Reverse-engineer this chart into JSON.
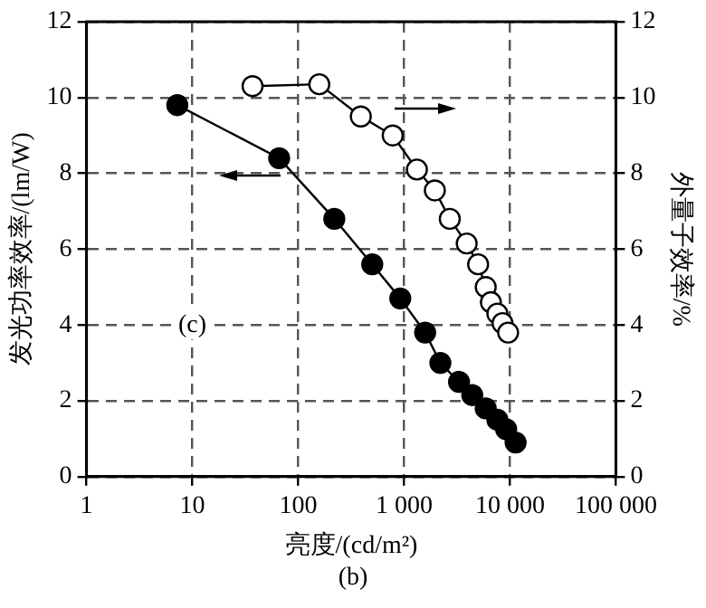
{
  "chart_data": {
    "type": "line",
    "xlabel": "亮度/(cd/m²)",
    "ylabel": "发光功率效率/(lm/W)",
    "y2label": "外量子效率/%",
    "log": "x",
    "xlim": [
      1,
      100000
    ],
    "xticks": [
      {
        "value": 1,
        "label": "1"
      },
      {
        "value": 10,
        "label": "10"
      },
      {
        "value": 100,
        "label": "100"
      },
      {
        "value": 1000,
        "label": "1 000"
      },
      {
        "value": 10000,
        "label": "10 000"
      },
      {
        "value": 100000,
        "label": "100 000"
      }
    ],
    "ylim": [
      0,
      12
    ],
    "yticks": [
      0,
      2,
      4,
      6,
      8,
      10,
      12
    ],
    "y2lim": [
      0,
      12
    ],
    "y2ticks": [
      0,
      2,
      4,
      6,
      8,
      10,
      12
    ],
    "grid": true,
    "marker": "circle",
    "line_style": "solid",
    "series": [
      {
        "color": "#000000",
        "x": [
          7.2,
          66,
          219,
          500,
          920,
          1580,
          2200,
          3300,
          4400,
          5900,
          7600,
          9200,
          11300
        ],
        "values": [
          9.8,
          8.4,
          6.8,
          5.6,
          4.7,
          3.8,
          3.0,
          2.5,
          2.15,
          1.8,
          1.5,
          1.25,
          0.9
        ]
      },
      {
        "color": "#000000",
        "axis": "y2",
        "x": [
          37,
          158,
          390,
          780,
          1320,
          1950,
          2700,
          3900,
          5000,
          5900,
          6600,
          7600,
          8500,
          9600
        ],
        "values": [
          10.3,
          10.35,
          9.5,
          9.0,
          8.1,
          7.55,
          6.8,
          6.15,
          5.6,
          5.0,
          4.6,
          4.3,
          4.05,
          3.8
        ]
      }
    ],
    "annotations": [
      "(c)",
      "(b)"
    ]
  }
}
